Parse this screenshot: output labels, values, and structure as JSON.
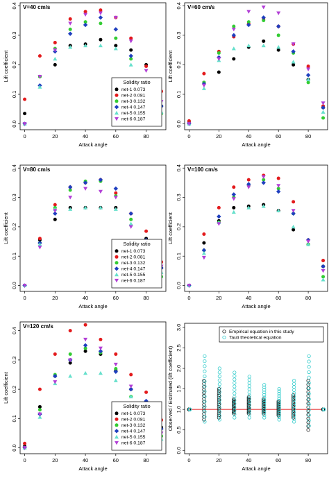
{
  "chart_data": [
    {
      "type": "scatter",
      "title": "V=40 cm/s",
      "xlabel": "Attack angle",
      "ylabel": "Lift coefficient",
      "xlim": [
        -3,
        93
      ],
      "ylim": [
        -0.02,
        0.41
      ],
      "xticks": [
        "0",
        "20",
        "40",
        "60",
        "80"
      ],
      "yticks": [
        "0.0",
        "0.1",
        "0.2",
        "0.3",
        "0.4"
      ],
      "legend_title": "Solidity ratio",
      "legend_position": "bottom-right",
      "x": [
        0,
        10,
        20,
        30,
        40,
        50,
        60,
        70,
        80,
        90
      ],
      "series": [
        {
          "name": "net-1 0.073",
          "color": "#000000",
          "marker": "circle",
          "values": [
            0.035,
            0.16,
            0.2,
            0.265,
            0.27,
            0.285,
            0.265,
            0.25,
            0.2,
            0.06
          ]
        },
        {
          "name": "net-2 0.081",
          "color": "#e31a1c",
          "marker": "circle",
          "values": [
            0.083,
            0.23,
            0.275,
            0.355,
            0.38,
            0.385,
            0.36,
            0.29,
            0.195,
            0.11
          ]
        },
        {
          "name": "net-3 0.132",
          "color": "#33cc33",
          "marker": "circle",
          "values": [
            0.0,
            0.16,
            0.255,
            0.32,
            0.345,
            0.34,
            0.29,
            0.22,
            0.14,
            0.035
          ]
        },
        {
          "name": "net-4 0.147",
          "color": "#1f3fbf",
          "marker": "diamond",
          "values": [
            0.0,
            0.13,
            0.245,
            0.305,
            0.335,
            0.36,
            0.32,
            0.23,
            0.145,
            0.06
          ]
        },
        {
          "name": "net-5 0.155",
          "color": "#66e0cc",
          "marker": "triangle-up",
          "values": [
            0.0,
            0.125,
            0.22,
            0.26,
            0.265,
            0.265,
            0.255,
            0.2,
            0.14,
            0.04
          ]
        },
        {
          "name": "net-6 0.187",
          "color": "#b23fd6",
          "marker": "triangle-down",
          "values": [
            0.0,
            0.16,
            0.25,
            0.34,
            0.37,
            0.375,
            0.36,
            0.28,
            0.18,
            0.075
          ]
        }
      ]
    },
    {
      "type": "scatter",
      "title": "V=60 cm/s",
      "xlabel": "Attack angle",
      "ylabel": "Lift coefficient",
      "xlim": [
        -3,
        93
      ],
      "ylim": [
        -0.02,
        0.41
      ],
      "xticks": [
        "0",
        "20",
        "40",
        "60",
        "80"
      ],
      "yticks": [
        "0.0",
        "0.1",
        "0.2",
        "0.3",
        "0.4"
      ],
      "x": [
        0,
        10,
        20,
        30,
        40,
        50,
        60,
        70,
        80,
        90
      ],
      "series": [
        {
          "name": "net-1 0.073",
          "color": "#000000",
          "marker": "circle",
          "values": [
            0.005,
            0.14,
            0.175,
            0.22,
            0.26,
            0.28,
            0.25,
            0.2,
            0.15,
            0.055
          ]
        },
        {
          "name": "net-2 0.081",
          "color": "#e31a1c",
          "marker": "circle",
          "values": [
            0.01,
            0.17,
            0.245,
            0.295,
            0.34,
            0.355,
            0.33,
            0.27,
            0.195,
            0.06
          ]
        },
        {
          "name": "net-3 0.132",
          "color": "#33cc33",
          "marker": "circle",
          "values": [
            0.0,
            0.14,
            0.24,
            0.33,
            0.345,
            0.35,
            0.3,
            0.24,
            0.14,
            0.02
          ]
        },
        {
          "name": "net-4 0.147",
          "color": "#1f3fbf",
          "marker": "diamond",
          "values": [
            0.0,
            0.135,
            0.225,
            0.3,
            0.335,
            0.36,
            0.33,
            0.245,
            0.165,
            0.055
          ]
        },
        {
          "name": "net-5 0.155",
          "color": "#66e0cc",
          "marker": "triangle-up",
          "values": [
            0.0,
            0.12,
            0.215,
            0.255,
            0.265,
            0.265,
            0.26,
            0.21,
            0.15,
            0.04
          ]
        },
        {
          "name": "net-6 0.187",
          "color": "#b23fd6",
          "marker": "triangle-down",
          "values": [
            0.0,
            0.13,
            0.22,
            0.32,
            0.38,
            0.395,
            0.375,
            0.27,
            0.185,
            0.07
          ]
        }
      ]
    },
    {
      "type": "scatter",
      "title": "V=80 cm/s",
      "xlabel": "Attack angle",
      "ylabel": "Lift coefficient",
      "xlim": [
        -3,
        93
      ],
      "ylim": [
        -0.02,
        0.41
      ],
      "xticks": [
        "0",
        "20",
        "40",
        "60",
        "80"
      ],
      "yticks": [
        "0.0",
        "0.1",
        "0.2",
        "0.3",
        "0.4"
      ],
      "legend_title": "Solidity ratio",
      "legend_position": "bottom-right",
      "x": [
        0,
        10,
        20,
        30,
        40,
        50,
        60,
        70,
        80,
        90
      ],
      "series": [
        {
          "name": "net-1 0.073",
          "color": "#000000",
          "marker": "circle",
          "values": [
            0.0,
            0.155,
            0.225,
            0.265,
            0.265,
            0.265,
            0.265,
            0.205,
            0.16,
            0.06
          ]
        },
        {
          "name": "net-2 0.081",
          "color": "#e31a1c",
          "marker": "circle",
          "values": [
            0.0,
            0.16,
            0.275,
            0.335,
            0.35,
            0.36,
            0.315,
            0.245,
            0.185,
            0.08
          ]
        },
        {
          "name": "net-3 0.132",
          "color": "#33cc33",
          "marker": "circle",
          "values": [
            0.0,
            0.145,
            0.265,
            0.325,
            0.355,
            0.355,
            0.305,
            0.225,
            0.145,
            0.03
          ]
        },
        {
          "name": "net-4 0.147",
          "color": "#1f3fbf",
          "marker": "diamond",
          "values": [
            0.0,
            0.145,
            0.245,
            0.335,
            0.35,
            0.36,
            0.33,
            0.245,
            0.155,
            0.06
          ]
        },
        {
          "name": "net-5 0.155",
          "color": "#66e0cc",
          "marker": "triangle-up",
          "values": [
            0.0,
            0.14,
            0.26,
            0.26,
            0.265,
            0.265,
            0.26,
            0.21,
            0.125,
            0.045
          ]
        },
        {
          "name": "net-6 0.187",
          "color": "#b23fd6",
          "marker": "triangle-down",
          "values": [
            0.0,
            0.13,
            0.255,
            0.3,
            0.33,
            0.32,
            0.3,
            0.2,
            0.14,
            0.065
          ]
        }
      ]
    },
    {
      "type": "scatter",
      "title": "V=100 cm/s",
      "xlabel": "Attack angle",
      "ylabel": "Lift coefficient",
      "xlim": [
        -3,
        93
      ],
      "ylim": [
        -0.02,
        0.41
      ],
      "xticks": [
        "0",
        "20",
        "40",
        "60",
        "80"
      ],
      "yticks": [
        "0.0",
        "0.1",
        "0.2",
        "0.3",
        "0.4"
      ],
      "x": [
        0,
        10,
        20,
        30,
        40,
        50,
        60,
        70,
        80,
        90
      ],
      "series": [
        {
          "name": "net-1 0.073",
          "color": "#000000",
          "marker": "circle",
          "values": [
            0.0,
            0.145,
            0.22,
            0.265,
            0.27,
            0.275,
            0.255,
            0.19,
            0.14,
            0.065
          ]
        },
        {
          "name": "net-2 0.081",
          "color": "#e31a1c",
          "marker": "circle",
          "values": [
            0.0,
            0.175,
            0.265,
            0.335,
            0.36,
            0.375,
            0.365,
            0.285,
            0.155,
            0.085
          ]
        },
        {
          "name": "net-3 0.132",
          "color": "#33cc33",
          "marker": "circle",
          "values": [
            0.0,
            0.12,
            0.215,
            0.3,
            0.34,
            0.36,
            0.33,
            0.245,
            0.14,
            0.03
          ]
        },
        {
          "name": "net-4 0.147",
          "color": "#1f3fbf",
          "marker": "diamond",
          "values": [
            0.0,
            0.12,
            0.235,
            0.31,
            0.345,
            0.35,
            0.32,
            0.245,
            0.155,
            0.065
          ]
        },
        {
          "name": "net-5 0.155",
          "color": "#66e0cc",
          "marker": "triangle-up",
          "values": [
            0.0,
            0.11,
            0.215,
            0.25,
            0.265,
            0.27,
            0.255,
            0.2,
            0.14,
            0.02
          ]
        },
        {
          "name": "net-6 0.187",
          "color": "#b23fd6",
          "marker": "triangle-down",
          "values": [
            0.0,
            0.095,
            0.21,
            0.295,
            0.335,
            0.37,
            0.34,
            0.255,
            0.15,
            0.05
          ]
        }
      ]
    },
    {
      "type": "scatter",
      "title": "V=120 cm/s",
      "xlabel": "Attack angle",
      "ylabel": "Lift coefficient",
      "xlim": [
        -3,
        93
      ],
      "ylim": [
        -0.02,
        0.43
      ],
      "xticks": [
        "0",
        "20",
        "40",
        "60",
        "80"
      ],
      "yticks": [
        "0.0",
        "0.1",
        "0.2",
        "0.3",
        "0.4"
      ],
      "legend_title": "Solidity ratio",
      "legend_position": "bottom-right",
      "x": [
        0,
        10,
        20,
        30,
        40,
        50,
        60,
        70,
        80,
        90
      ],
      "series": [
        {
          "name": "net-1 0.073",
          "color": "#000000",
          "marker": "circle",
          "values": [
            0.005,
            0.14,
            0.245,
            0.29,
            0.33,
            0.32,
            0.265,
            0.2,
            0.13,
            0.07
          ]
        },
        {
          "name": "net-2 0.081",
          "color": "#e31a1c",
          "marker": "circle",
          "values": [
            0.015,
            0.2,
            0.32,
            0.4,
            0.42,
            0.37,
            0.32,
            0.25,
            0.19,
            0.095
          ]
        },
        {
          "name": "net-3 0.132",
          "color": "#33cc33",
          "marker": "circle",
          "values": [
            0.0,
            0.13,
            0.25,
            0.32,
            0.34,
            0.325,
            0.27,
            0.175,
            0.13,
            0.04
          ]
        },
        {
          "name": "net-4 0.147",
          "color": "#1f3fbf",
          "marker": "diamond",
          "values": [
            0.0,
            0.115,
            0.245,
            0.3,
            0.35,
            0.33,
            0.26,
            0.2,
            0.16,
            0.065
          ]
        },
        {
          "name": "net-5 0.155",
          "color": "#66e0cc",
          "marker": "triangle-up",
          "values": [
            0.0,
            0.105,
            0.22,
            0.245,
            0.255,
            0.255,
            0.23,
            0.175,
            0.11,
            0.03
          ]
        },
        {
          "name": "net-6 0.187",
          "color": "#b23fd6",
          "marker": "triangle-down",
          "values": [
            0.0,
            0.115,
            0.225,
            0.3,
            0.37,
            0.34,
            0.285,
            0.21,
            0.145,
            0.05
          ]
        }
      ]
    },
    {
      "type": "scatter",
      "title": "",
      "xlabel": "Attack angle",
      "ylabel": "Observed / Estimated (lift coefficient)",
      "xlim": [
        -3,
        93
      ],
      "ylim": [
        -0.08,
        3.1
      ],
      "xticks": [
        "0",
        "20",
        "40",
        "60",
        "80"
      ],
      "yticks": [
        "0.0",
        "0.5",
        "1.0",
        "1.5",
        "2.0",
        "2.5",
        "3.0"
      ],
      "legend_position": "top-right",
      "reference_line": {
        "y": 1.0,
        "color": "#e31a1c"
      },
      "series": [
        {
          "name": "Empirical equation in this study",
          "color": "#1a1a1a",
          "marker": "open-circle",
          "x_values": [
            0,
            10,
            20,
            30,
            40,
            50,
            60,
            70,
            80,
            90
          ],
          "low": [
            1.0,
            0.75,
            0.8,
            0.9,
            0.9,
            0.9,
            0.85,
            0.8,
            0.5,
            1.0
          ],
          "high": [
            1.0,
            1.7,
            1.5,
            1.25,
            1.3,
            1.25,
            1.2,
            1.35,
            1.7,
            1.0
          ],
          "n_per_angle": 14
        },
        {
          "name": "Tauti theoretical equation",
          "color": "#33cccc",
          "marker": "open-circle",
          "x_values": [
            0,
            10,
            20,
            30,
            40,
            50,
            60,
            70,
            80,
            90
          ],
          "low": [
            1.0,
            0.7,
            0.75,
            0.8,
            0.8,
            0.8,
            0.75,
            0.7,
            0.6,
            1.0
          ],
          "high": [
            1.0,
            2.3,
            2.0,
            1.9,
            1.8,
            1.6,
            1.5,
            1.7,
            2.3,
            1.0
          ],
          "n_per_angle": 14
        }
      ]
    }
  ]
}
